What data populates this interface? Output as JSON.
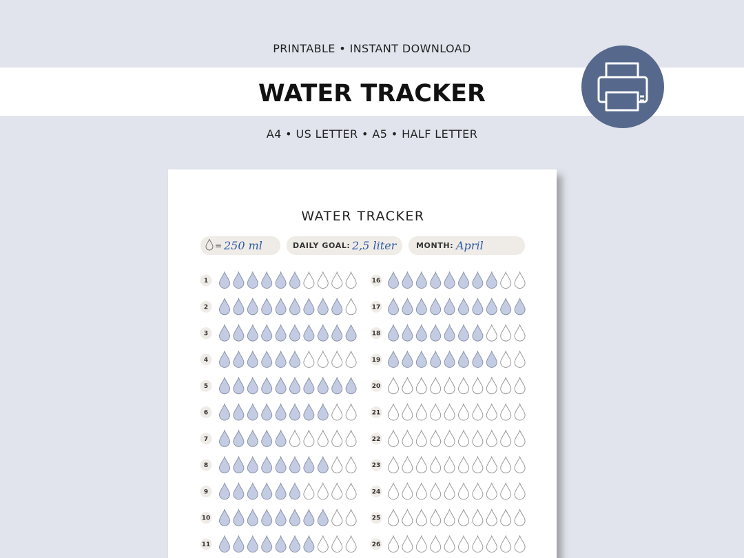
{
  "header": {
    "tagline": "PRINTABLE • INSTANT DOWNLOAD",
    "title": "WATER TRACKER",
    "sizes": "A4 • US LETTER • A5 • HALF LETTER"
  },
  "sheet": {
    "title": "WATER TRACKER",
    "serving_sign": "=",
    "serving": "250 ml",
    "goal_label": "DAILY GOAL:",
    "goal": "2,5 liter",
    "month_label": "MONTH:",
    "month": "April",
    "days": [
      {
        "day": 1,
        "filled": 6
      },
      {
        "day": 2,
        "filled": 9
      },
      {
        "day": 3,
        "filled": 10
      },
      {
        "day": 4,
        "filled": 6
      },
      {
        "day": 5,
        "filled": 10
      },
      {
        "day": 6,
        "filled": 8
      },
      {
        "day": 7,
        "filled": 5
      },
      {
        "day": 8,
        "filled": 8
      },
      {
        "day": 9,
        "filled": 6
      },
      {
        "day": 10,
        "filled": 8
      },
      {
        "day": 11,
        "filled": 7
      },
      {
        "day": 16,
        "filled": 8
      },
      {
        "day": 17,
        "filled": 10
      },
      {
        "day": 18,
        "filled": 7
      },
      {
        "day": 19,
        "filled": 8
      },
      {
        "day": 20,
        "filled": 0
      },
      {
        "day": 21,
        "filled": 0
      },
      {
        "day": 22,
        "filled": 0
      },
      {
        "day": 23,
        "filled": 0
      },
      {
        "day": 24,
        "filled": 0
      },
      {
        "day": 25,
        "filled": 0
      },
      {
        "day": 26,
        "filled": 0
      }
    ]
  }
}
